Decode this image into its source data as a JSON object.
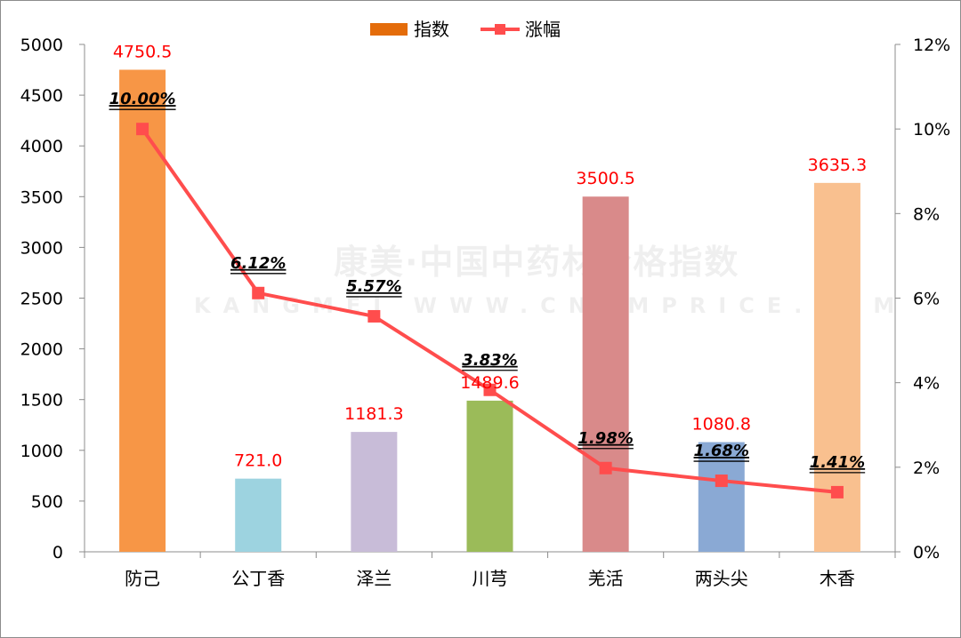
{
  "chart_data": {
    "type": "bar",
    "title": "",
    "categories": [
      "防己",
      "公丁香",
      "泽兰",
      "川芎",
      "羌活",
      "两头尖",
      "木香"
    ],
    "series": [
      {
        "name": "指数",
        "type": "bar",
        "axis": "left",
        "values": [
          4750.5,
          721.0,
          1181.3,
          1489.6,
          3500.5,
          1080.8,
          3635.3
        ],
        "labels": [
          "4750.5",
          "721.0",
          "1181.3",
          "1489.6",
          "3500.5",
          "1080.8",
          "3635.3"
        ],
        "colors": [
          "#f79646",
          "#9dd3e0",
          "#c8bcd8",
          "#9bbb59",
          "#d98a8a",
          "#8aa9d4",
          "#f9c08f"
        ]
      },
      {
        "name": "涨幅",
        "type": "line",
        "axis": "right",
        "values": [
          10.0,
          6.12,
          5.57,
          3.83,
          1.98,
          1.68,
          1.41
        ],
        "labels": [
          "10.00%",
          "6.12%",
          "5.57%",
          "3.83%",
          "1.98%",
          "1.68%",
          "1.41%"
        ],
        "color": "#ff4d4d"
      }
    ],
    "y_left": {
      "min": 0,
      "max": 5000,
      "step": 500,
      "ticks": [
        "0",
        "500",
        "1000",
        "1500",
        "2000",
        "2500",
        "3000",
        "3500",
        "4000",
        "4500",
        "5000"
      ]
    },
    "y_right": {
      "min": 0,
      "max": 12,
      "step": 2,
      "ticks": [
        "0%",
        "2%",
        "4%",
        "6%",
        "8%",
        "10%",
        "12%"
      ]
    },
    "grid": false,
    "legend_position": "top-center",
    "legend": {
      "bar_color": "#e46c0a",
      "line_color": "#ff4d4d"
    },
    "watermark": {
      "text_cn": "康美·中国中药材价格指数",
      "text_en": "KANGMEI WWW.CNKMPRICE.COM"
    }
  }
}
